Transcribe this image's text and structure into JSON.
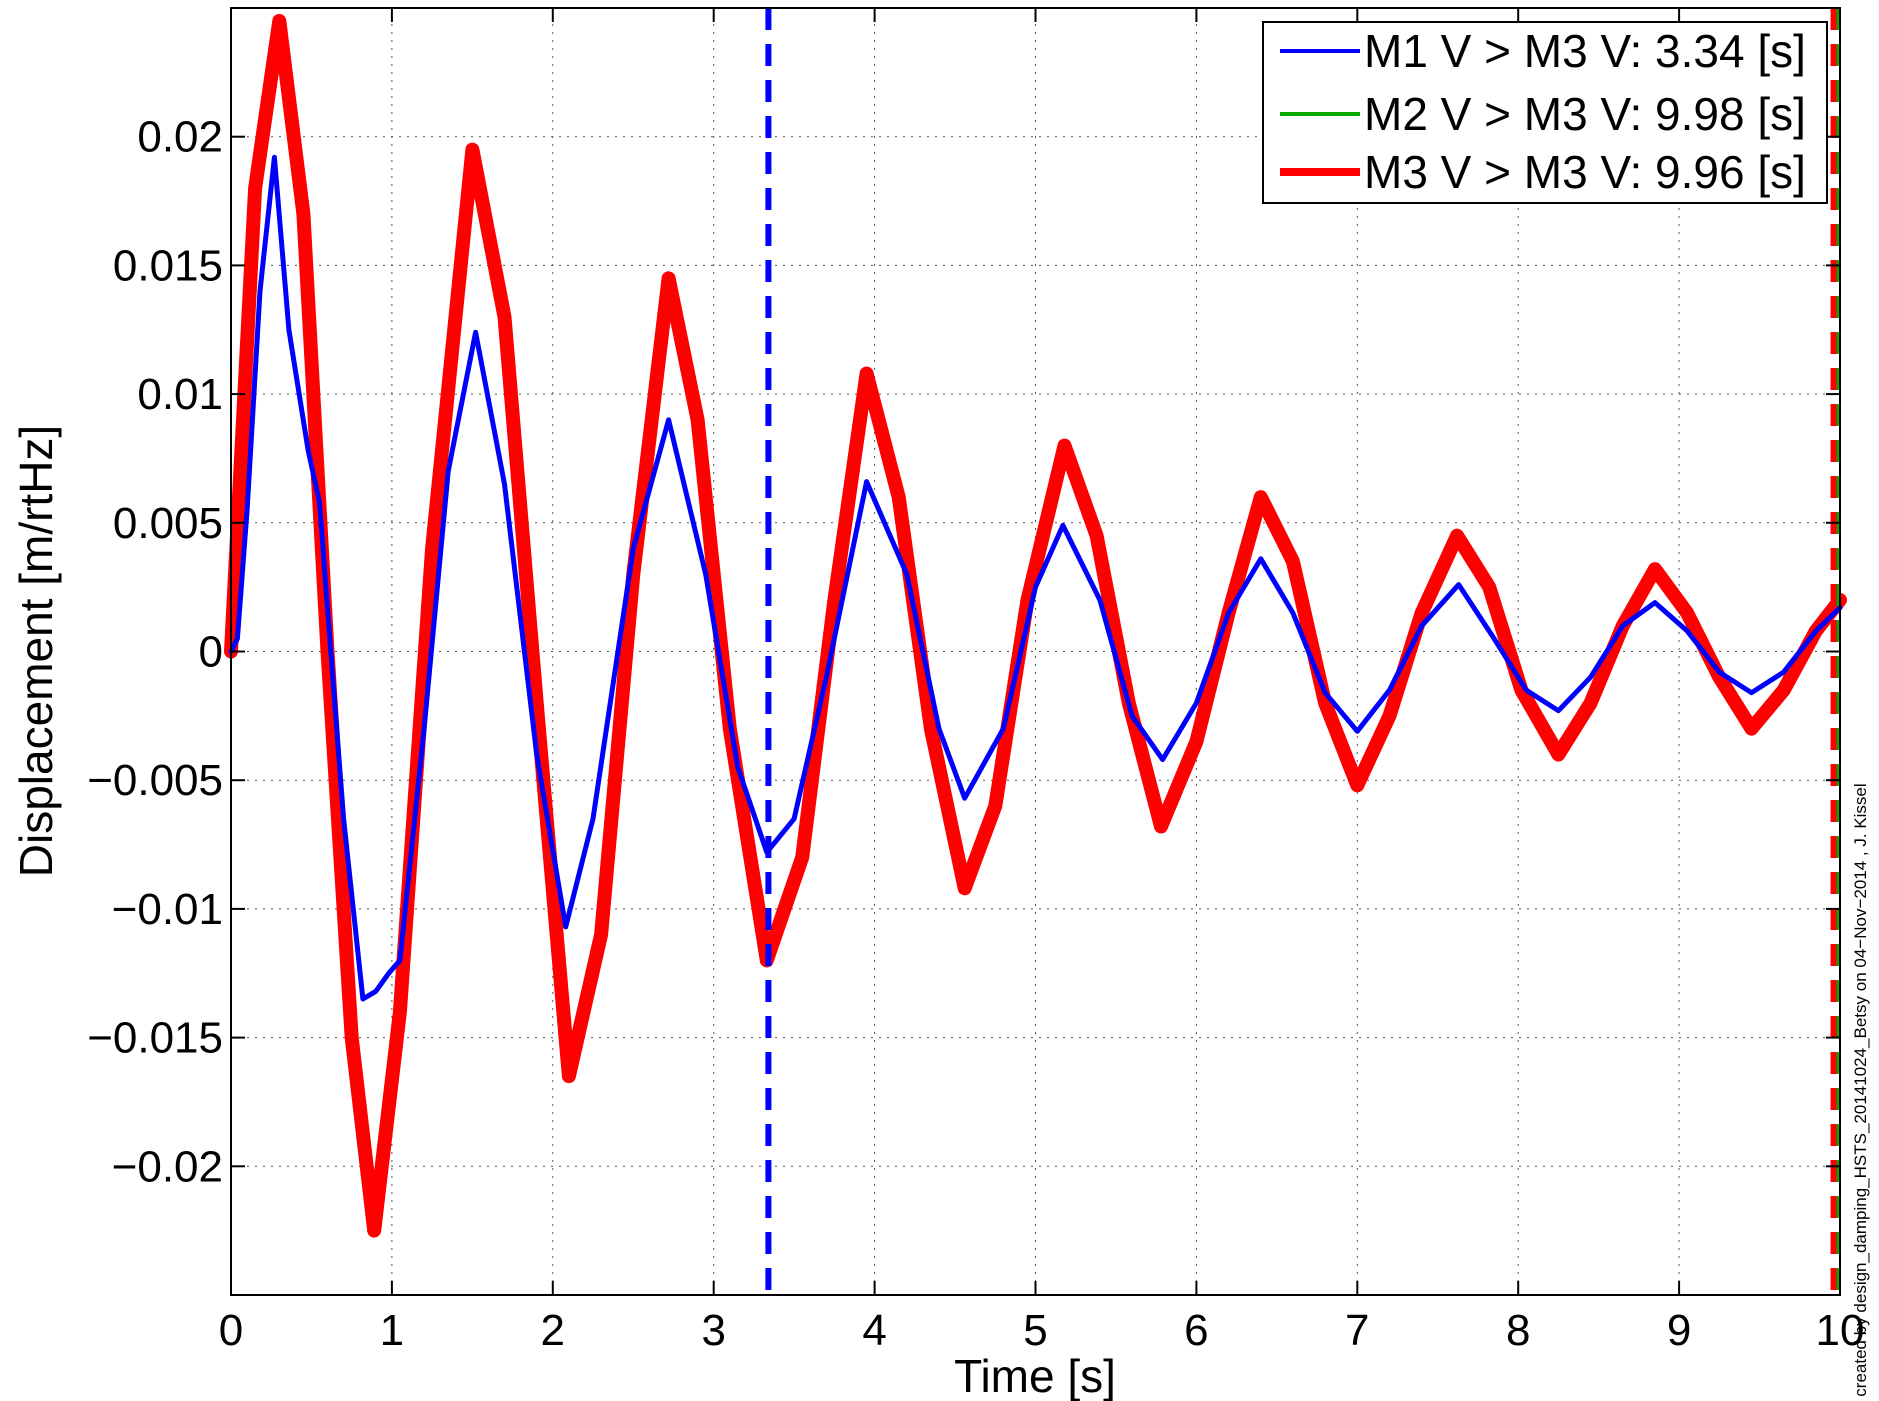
{
  "chart_data": {
    "type": "line",
    "title": "",
    "xlabel": "Time [s]",
    "ylabel": "Displacement [m/rtHz]",
    "xlim": [
      0,
      10
    ],
    "ylim": [
      -0.025,
      0.025
    ],
    "xticks": [
      0,
      1,
      2,
      3,
      4,
      5,
      6,
      7,
      8,
      9,
      10
    ],
    "xtick_labels": [
      "0",
      "1",
      "2",
      "3",
      "4",
      "5",
      "6",
      "7",
      "8",
      "9",
      "10"
    ],
    "yticks": [
      0.02,
      0.015,
      0.01,
      0.005,
      0,
      -0.005,
      -0.01,
      -0.015,
      -0.02
    ],
    "ytick_labels": [
      "0.02",
      "0.015",
      "0.01",
      "0.005",
      "0",
      "−0.005",
      "−0.01",
      "−0.015",
      "−0.02"
    ],
    "grid": true,
    "legend_position": "top-right",
    "series": [
      {
        "name": "M1 V > M3 V: 3.34 [s]",
        "color": "#0000ff",
        "style": "solid",
        "x": [
          0,
          0.04,
          0.1,
          0.18,
          0.27,
          0.36,
          0.48,
          0.55,
          0.62,
          0.7,
          0.82,
          0.9,
          0.98,
          1.05,
          1.2,
          1.35,
          1.52,
          1.7,
          1.9,
          2.08,
          2.25,
          2.5,
          2.72,
          2.95,
          3.15,
          3.33,
          3.5,
          3.7,
          3.95,
          4.2,
          4.4,
          4.56,
          4.8,
          5.0,
          5.17,
          5.4,
          5.6,
          5.79,
          6.0,
          6.2,
          6.4,
          6.6,
          6.8,
          7.0,
          7.2,
          7.4,
          7.63,
          7.85,
          8.05,
          8.25,
          8.45,
          8.65,
          8.85,
          9.05,
          9.25,
          9.45,
          9.65,
          9.85,
          10.0
        ],
        "y": [
          0.0,
          0.0005,
          0.0055,
          0.014,
          0.0192,
          0.0125,
          0.0078,
          0.0058,
          0.0,
          -0.0065,
          -0.0135,
          -0.0132,
          -0.0125,
          -0.012,
          -0.003,
          0.007,
          0.0124,
          0.0065,
          -0.004,
          -0.0107,
          -0.0065,
          0.004,
          0.009,
          0.003,
          -0.0045,
          -0.0078,
          -0.0065,
          -0.001,
          0.0066,
          0.003,
          -0.003,
          -0.0057,
          -0.003,
          0.0025,
          0.0049,
          0.002,
          -0.0025,
          -0.0042,
          -0.002,
          0.0015,
          0.0036,
          0.0015,
          -0.0016,
          -0.0031,
          -0.0015,
          0.001,
          0.0026,
          0.0005,
          -0.0015,
          -0.0023,
          -0.001,
          0.001,
          0.0019,
          0.0008,
          -0.0008,
          -0.0016,
          -0.0008,
          0.0008,
          0.0017
        ]
      },
      {
        "name": "M2 V > M3 V: 9.98 [s]",
        "color": "#00aa00",
        "style": "solid",
        "x": [
          0,
          0.05,
          0.15,
          0.3,
          0.45,
          0.6,
          0.75,
          0.89,
          1.05,
          1.25,
          1.5,
          1.7,
          1.9,
          2.1,
          2.3,
          2.5,
          2.72,
          2.9,
          3.1,
          3.33,
          3.55,
          3.75,
          3.95,
          4.15,
          4.35,
          4.56,
          4.75,
          4.95,
          5.18,
          5.38,
          5.58,
          5.78,
          6.0,
          6.2,
          6.4,
          6.6,
          6.8,
          7.0,
          7.2,
          7.4,
          7.62,
          7.82,
          8.02,
          8.25,
          8.45,
          8.65,
          8.85,
          9.05,
          9.25,
          9.45,
          9.65,
          9.85,
          10.0
        ],
        "y": [
          0.0,
          0.006,
          0.018,
          0.0245,
          0.017,
          0.0,
          -0.015,
          -0.0225,
          -0.014,
          0.004,
          0.0195,
          0.013,
          -0.002,
          -0.0165,
          -0.011,
          0.003,
          0.0145,
          0.009,
          -0.003,
          -0.012,
          -0.008,
          0.002,
          0.0108,
          0.006,
          -0.003,
          -0.0092,
          -0.006,
          0.002,
          0.008,
          0.0045,
          -0.002,
          -0.0068,
          -0.0035,
          0.0015,
          0.006,
          0.0035,
          -0.002,
          -0.0052,
          -0.0025,
          0.0015,
          0.0045,
          0.0025,
          -0.0015,
          -0.004,
          -0.002,
          0.001,
          0.0032,
          0.0015,
          -0.001,
          -0.003,
          -0.0015,
          0.0008,
          0.002
        ]
      },
      {
        "name": "M3 V > M3 V: 9.96 [s]",
        "color": "#ff0000",
        "style": "solid",
        "x": [
          0,
          0.05,
          0.15,
          0.3,
          0.45,
          0.6,
          0.75,
          0.89,
          1.05,
          1.25,
          1.5,
          1.7,
          1.9,
          2.1,
          2.3,
          2.5,
          2.72,
          2.9,
          3.1,
          3.33,
          3.55,
          3.75,
          3.95,
          4.15,
          4.35,
          4.56,
          4.75,
          4.95,
          5.18,
          5.38,
          5.58,
          5.78,
          6.0,
          6.2,
          6.4,
          6.6,
          6.8,
          7.0,
          7.2,
          7.4,
          7.62,
          7.82,
          8.02,
          8.25,
          8.45,
          8.65,
          8.85,
          9.05,
          9.25,
          9.45,
          9.65,
          9.85,
          10.0
        ],
        "y": [
          0.0,
          0.006,
          0.018,
          0.0245,
          0.017,
          0.0,
          -0.015,
          -0.0225,
          -0.014,
          0.004,
          0.0195,
          0.013,
          -0.002,
          -0.0165,
          -0.011,
          0.003,
          0.0145,
          0.009,
          -0.003,
          -0.012,
          -0.008,
          0.002,
          0.0108,
          0.006,
          -0.003,
          -0.0092,
          -0.006,
          0.002,
          0.008,
          0.0045,
          -0.002,
          -0.0068,
          -0.0035,
          0.0015,
          0.006,
          0.0035,
          -0.002,
          -0.0052,
          -0.0025,
          0.0015,
          0.0045,
          0.0025,
          -0.0015,
          -0.004,
          -0.002,
          0.001,
          0.0032,
          0.0015,
          -0.001,
          -0.003,
          -0.0015,
          0.0008,
          0.002
        ]
      }
    ],
    "vertical_markers": [
      {
        "x": 3.34,
        "color": "#0000ff",
        "style": "dashed"
      },
      {
        "x": 9.98,
        "color": "#00aa00",
        "style": "dashed"
      },
      {
        "x": 9.96,
        "color": "#ff0000",
        "style": "dashed"
      }
    ],
    "annotations": [
      {
        "text": "created by design_damping_HSTS_20141024_Betsy on 04−Nov−2014 , J. Kissel"
      }
    ]
  }
}
